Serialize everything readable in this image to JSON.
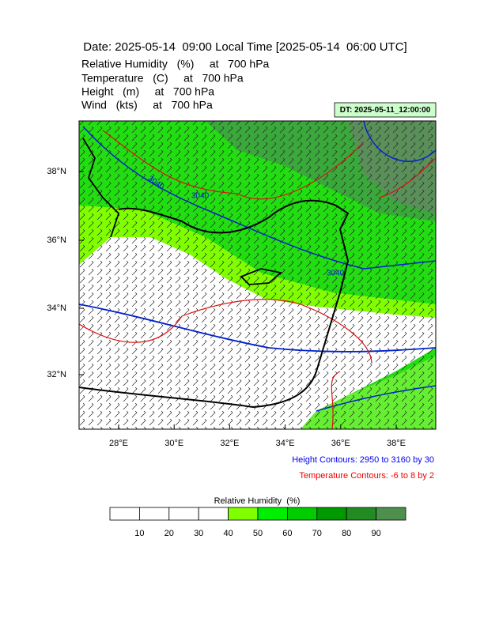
{
  "header": {
    "title": "Date: 2025-05-14  09:00 Local Time [2025-05-14  06:00 UTC]",
    "lines": [
      "Relative Humidity   (%)     at   700 hPa",
      "Temperature   (C)     at   700 hPa",
      "Height   (m)     at   700 hPa",
      "Wind   (kts)     at   700 hPa"
    ],
    "dt": "DT: 2025-05-11_12:00:00"
  },
  "map": {
    "lat_labels": [
      "38°N",
      "36°N",
      "34°N",
      "32°N"
    ],
    "lon_labels": [
      "28°E",
      "30°E",
      "32°E",
      "34°E",
      "36°E",
      "38°E"
    ],
    "contour_labels": [
      "3040",
      "3040",
      "3040"
    ]
  },
  "legend": {
    "height": "Height Contours: 2950 to 3160 by 30",
    "temperature": "Temperature Contours: -6 to 8 by 2"
  },
  "colorbar": {
    "title": "Relative Humidity  (%)",
    "labels": [
      "10",
      "20",
      "30",
      "40",
      "50",
      "60",
      "70",
      "80",
      "90"
    ],
    "colors": [
      "#ffffff",
      "#ffffff",
      "#ffffff",
      "#ffffff",
      "#80ff00",
      "#00ee00",
      "#00cc00",
      "#009900",
      "#228b22",
      "#4e8f4e"
    ]
  }
}
